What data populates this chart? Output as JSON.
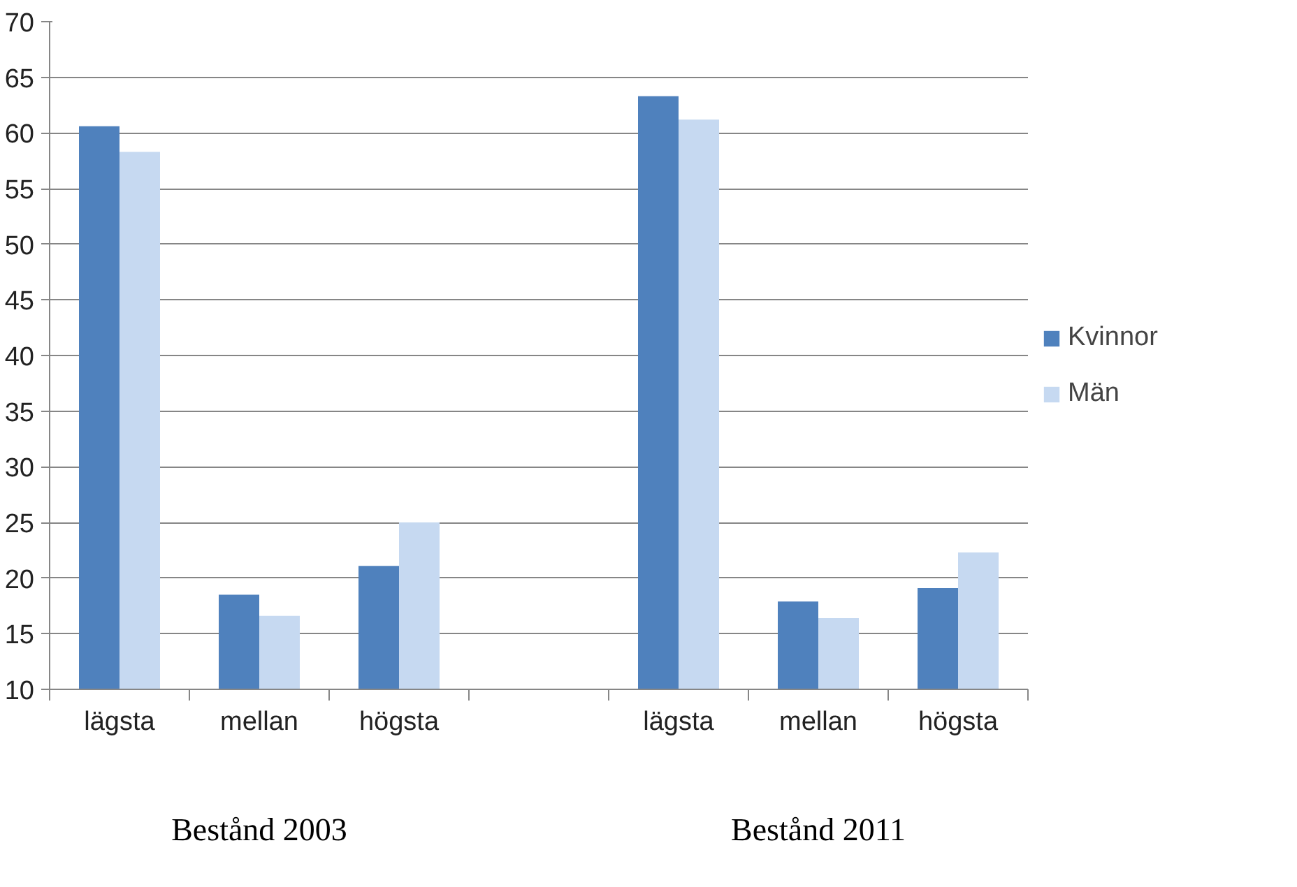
{
  "chart_data": {
    "type": "bar",
    "categories": [
      "lägsta",
      "mellan",
      "högsta",
      null,
      "lägsta",
      "mellan",
      "högsta"
    ],
    "series": [
      {
        "name": "Kvinnor",
        "color": "#4f81bd",
        "values": [
          60.6,
          18.5,
          21.1,
          null,
          63.3,
          17.9,
          19.1
        ]
      },
      {
        "name": "Män",
        "color": "#c6d9f1",
        "values": [
          58.3,
          16.6,
          25.0,
          null,
          61.2,
          16.4,
          22.3
        ]
      }
    ],
    "ylim": [
      10,
      70
    ],
    "yticks": [
      10,
      15,
      20,
      25,
      30,
      35,
      40,
      45,
      50,
      55,
      60,
      65,
      70
    ],
    "grid": "y",
    "legend": "right",
    "annotations": [
      "Bestånd 2003",
      "Bestånd 2011"
    ]
  }
}
